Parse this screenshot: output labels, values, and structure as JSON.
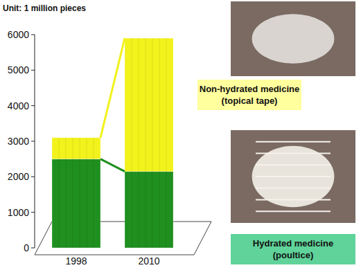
{
  "chart_data": {
    "type": "bar",
    "stacked": true,
    "subtitle": "Unit: 1 million pieces",
    "categories": [
      "1998",
      "2010"
    ],
    "series": [
      {
        "name": "Hydrated medicine (poultice)",
        "color": "#1f8f1f",
        "values": [
          2500,
          2150
        ]
      },
      {
        "name": "Non-hydrated medicine (topical tape)",
        "color": "#f2f21c",
        "values": [
          600,
          3750
        ]
      }
    ],
    "ylim": [
      0,
      6000
    ],
    "yticks": [
      0,
      1000,
      2000,
      3000,
      4000,
      5000,
      6000
    ],
    "legend": "right",
    "grid": false
  }
}
